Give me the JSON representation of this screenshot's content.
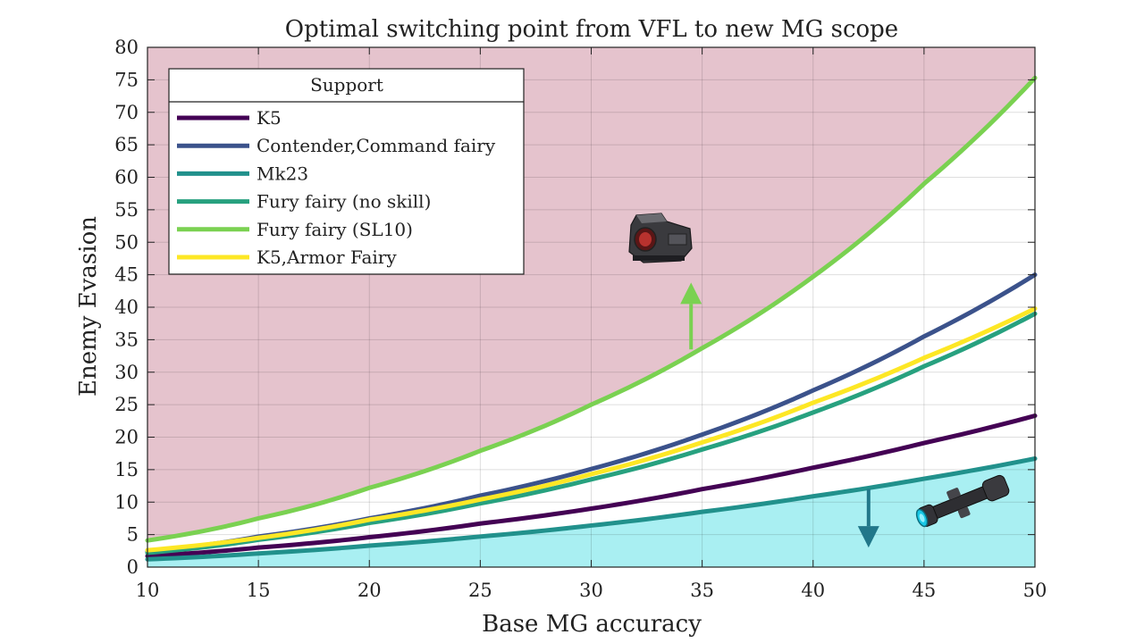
{
  "chart_data": {
    "type": "line",
    "title": "Optimal switching point from VFL to new MG scope",
    "xlabel": "Base MG accuracy",
    "ylabel": "Enemy Evasion",
    "xlim": [
      10,
      50
    ],
    "ylim": [
      0,
      80
    ],
    "xticks": [
      10,
      15,
      20,
      25,
      30,
      35,
      40,
      45,
      50
    ],
    "yticks": [
      0,
      5,
      10,
      15,
      20,
      25,
      30,
      35,
      40,
      45,
      50,
      55,
      60,
      65,
      70,
      75,
      80
    ],
    "grid": true,
    "legend": {
      "title": "Support",
      "position": "top-left"
    },
    "x": [
      10,
      15,
      20,
      25,
      30,
      35,
      40,
      45,
      50
    ],
    "series": [
      {
        "name": "K5",
        "color": "#440154",
        "values": [
          1.7,
          3.0,
          4.6,
          6.7,
          9.0,
          12.0,
          15.3,
          19.1,
          23.3
        ]
      },
      {
        "name": "Contender,Command fairy",
        "color": "#3b528b",
        "values": [
          2.4,
          4.7,
          7.5,
          11.0,
          15.1,
          20.4,
          27.2,
          35.5,
          45.0
        ]
      },
      {
        "name": "Mk23",
        "color": "#21918c",
        "values": [
          1.2,
          2.1,
          3.3,
          4.7,
          6.4,
          8.5,
          10.9,
          13.6,
          16.7
        ]
      },
      {
        "name": "Fury fairy (no skill)",
        "color": "#27a17f",
        "values": [
          2.2,
          4.2,
          6.8,
          9.8,
          13.5,
          18.1,
          23.8,
          30.9,
          39.0
        ]
      },
      {
        "name": "Fury fairy (SL10)",
        "color": "#7ad151",
        "values": [
          4.1,
          7.5,
          12.2,
          17.9,
          25.0,
          33.7,
          44.7,
          59.0,
          75.3
        ]
      },
      {
        "name": "K5,Armor Fairy",
        "color": "#fde725",
        "values": [
          2.6,
          4.5,
          7.3,
          10.4,
          14.3,
          19.2,
          25.3,
          32.2,
          39.8
        ]
      }
    ],
    "regions": [
      {
        "name": "VFL region (above Fury fairy SL10)",
        "color": "#e5c3cd",
        "bound": "above",
        "series": "Fury fairy (SL10)"
      },
      {
        "name": "New MG scope region (below Mk23)",
        "color": "#a9eff2",
        "bound": "below",
        "series": "Mk23"
      }
    ],
    "annotations": [
      {
        "name": "up-arrow",
        "color": "#7ad151",
        "x": 34.5,
        "y_from": 33.5,
        "y_to": 43.8,
        "icon": "red-dot-sight-icon"
      },
      {
        "name": "down-arrow",
        "color": "#21778a",
        "x": 42.5,
        "y_from": 12.0,
        "y_to": 3.0,
        "icon": "rifle-scope-icon"
      }
    ]
  }
}
